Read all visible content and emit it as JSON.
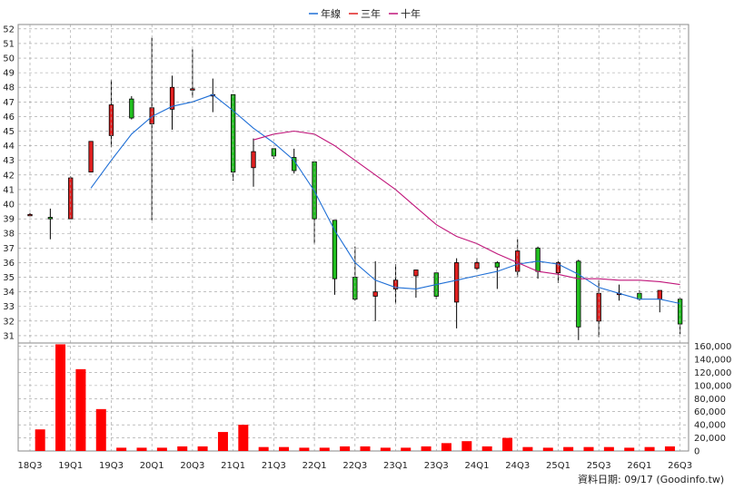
{
  "chart_data": {
    "type": "candlestick",
    "legend": [
      {
        "name": "年線",
        "color": "#1f6fd6"
      },
      {
        "name": "三年",
        "color": "#e02020"
      },
      {
        "name": "十年",
        "color": "#c0157a"
      }
    ],
    "x_tick_labels": [
      "18Q3",
      "19Q1",
      "19Q3",
      "20Q1",
      "20Q3",
      "21Q1",
      "21Q3",
      "22Q1",
      "22Q3",
      "23Q1",
      "23Q3",
      "24Q1",
      "24Q3",
      "25Q1",
      "25Q3",
      "26Q1",
      "26Q3"
    ],
    "price_axis": {
      "ylim": [
        30.5,
        52.3
      ],
      "ticks": [
        31,
        32,
        33,
        34,
        35,
        36,
        37,
        38,
        39,
        40,
        41,
        42,
        43,
        44,
        45,
        46,
        47,
        48,
        49,
        50,
        51,
        52
      ]
    },
    "volume_axis": {
      "ylim": [
        0,
        165000
      ],
      "ticks": [
        0,
        20000,
        40000,
        60000,
        80000,
        100000,
        120000,
        140000,
        160000
      ],
      "tick_labels": [
        "0",
        "20,000",
        "40,000",
        "60,000",
        "80,000",
        "100,000",
        "120,000",
        "140,000",
        "160,000"
      ]
    },
    "candles": [
      {
        "o": 39.3,
        "c": 39.3,
        "h": 39.4,
        "l": 39.2
      },
      {
        "o": 39.1,
        "c": 39.0,
        "h": 39.7,
        "l": 37.6
      },
      {
        "o": 39.0,
        "c": 41.8,
        "h": 41.9,
        "l": 39.0
      },
      {
        "o": 42.2,
        "c": 44.3,
        "h": 44.3,
        "l": 42.2
      },
      {
        "o": 44.7,
        "c": 46.8,
        "h": 48.5,
        "l": 43.9
      },
      {
        "o": 47.2,
        "c": 45.9,
        "h": 47.4,
        "l": 45.8
      },
      {
        "o": 45.5,
        "c": 46.6,
        "h": 51.4,
        "l": 38.9
      },
      {
        "o": 46.5,
        "c": 48.0,
        "h": 48.8,
        "l": 45.1
      },
      {
        "o": 47.9,
        "c": 47.9,
        "h": 50.6,
        "l": 47.3
      },
      {
        "o": 47.5,
        "c": 47.5,
        "h": 48.6,
        "l": 46.3
      },
      {
        "o": 47.5,
        "c": 42.2,
        "h": 47.5,
        "l": 41.6
      },
      {
        "o": 42.5,
        "c": 43.6,
        "h": 44.5,
        "l": 41.2
      },
      {
        "o": 43.8,
        "c": 43.3,
        "h": 43.8,
        "l": 43.1
      },
      {
        "o": 43.2,
        "c": 42.3,
        "h": 43.8,
        "l": 42.1
      },
      {
        "o": 42.9,
        "c": 39.0,
        "h": 42.9,
        "l": 37.3
      },
      {
        "o": 38.9,
        "c": 34.9,
        "h": 38.9,
        "l": 33.8
      },
      {
        "o": 35.0,
        "c": 33.5,
        "h": 37.1,
        "l": 33.4
      },
      {
        "o": 33.7,
        "c": 34.0,
        "h": 36.1,
        "l": 32.0
      },
      {
        "o": 34.2,
        "c": 34.8,
        "h": 35.9,
        "l": 33.2
      },
      {
        "o": 35.1,
        "c": 35.5,
        "h": 35.5,
        "l": 33.6
      },
      {
        "o": 35.3,
        "c": 33.7,
        "h": 35.3,
        "l": 33.5
      },
      {
        "o": 33.3,
        "c": 36.0,
        "h": 36.3,
        "l": 31.5
      },
      {
        "o": 35.6,
        "c": 36.0,
        "h": 36.3,
        "l": 35.5
      },
      {
        "o": 36.0,
        "c": 35.7,
        "h": 36.1,
        "l": 34.2
      },
      {
        "o": 35.4,
        "c": 36.8,
        "h": 37.6,
        "l": 35.0
      },
      {
        "o": 37.0,
        "c": 35.4,
        "h": 37.1,
        "l": 34.9
      },
      {
        "o": 35.3,
        "c": 36.0,
        "h": 36.1,
        "l": 34.6
      },
      {
        "o": 36.1,
        "c": 31.6,
        "h": 36.2,
        "l": 30.7
      },
      {
        "o": 32.0,
        "c": 33.9,
        "h": 34.8,
        "l": 30.9
      },
      {
        "o": 33.9,
        "c": 33.9,
        "h": 34.5,
        "l": 33.4
      },
      {
        "o": 33.9,
        "c": 33.5,
        "h": 34.1,
        "l": 33.4
      },
      {
        "o": 33.5,
        "c": 34.1,
        "h": 34.1,
        "l": 32.6
      },
      {
        "o": 33.5,
        "c": 31.8,
        "h": 33.6,
        "l": 31.1
      }
    ],
    "year_line": [
      {
        "i": 3,
        "v": 41.1
      },
      {
        "i": 4,
        "v": 43.0
      },
      {
        "i": 5,
        "v": 44.8
      },
      {
        "i": 6,
        "v": 46.0
      },
      {
        "i": 7,
        "v": 46.7
      },
      {
        "i": 8,
        "v": 47.0
      },
      {
        "i": 9,
        "v": 47.5
      },
      {
        "i": 10,
        "v": 46.4
      },
      {
        "i": 11,
        "v": 45.2
      },
      {
        "i": 12,
        "v": 44.2
      },
      {
        "i": 13,
        "v": 43.0
      },
      {
        "i": 14,
        "v": 40.9
      },
      {
        "i": 15,
        "v": 38.2
      },
      {
        "i": 16,
        "v": 36.0
      },
      {
        "i": 17,
        "v": 34.8
      },
      {
        "i": 18,
        "v": 34.3
      },
      {
        "i": 19,
        "v": 34.2
      },
      {
        "i": 20,
        "v": 34.5
      },
      {
        "i": 21,
        "v": 34.8
      },
      {
        "i": 22,
        "v": 35.1
      },
      {
        "i": 23,
        "v": 35.4
      },
      {
        "i": 24,
        "v": 35.9
      },
      {
        "i": 25,
        "v": 36.1
      },
      {
        "i": 26,
        "v": 35.9
      },
      {
        "i": 27,
        "v": 35.2
      },
      {
        "i": 28,
        "v": 34.3
      },
      {
        "i": 29,
        "v": 33.9
      },
      {
        "i": 30,
        "v": 33.5
      },
      {
        "i": 31,
        "v": 33.5
      },
      {
        "i": 32,
        "v": 33.2
      }
    ],
    "three_year_line": [
      {
        "i": 11,
        "v": 44.4
      },
      {
        "i": 12,
        "v": 44.8
      },
      {
        "i": 13,
        "v": 45.0
      },
      {
        "i": 14,
        "v": 44.8
      },
      {
        "i": 15,
        "v": 44.0
      },
      {
        "i": 16,
        "v": 43.0
      },
      {
        "i": 17,
        "v": 42.0
      },
      {
        "i": 18,
        "v": 41.0
      },
      {
        "i": 19,
        "v": 39.8
      },
      {
        "i": 20,
        "v": 38.6
      },
      {
        "i": 21,
        "v": 37.8
      },
      {
        "i": 22,
        "v": 37.3
      },
      {
        "i": 23,
        "v": 36.6
      },
      {
        "i": 24,
        "v": 36.0
      },
      {
        "i": 25,
        "v": 35.4
      },
      {
        "i": 26,
        "v": 35.2
      },
      {
        "i": 27,
        "v": 34.9
      },
      {
        "i": 28,
        "v": 34.9
      },
      {
        "i": 29,
        "v": 34.8
      },
      {
        "i": 30,
        "v": 34.8
      },
      {
        "i": 31,
        "v": 34.7
      },
      {
        "i": 32,
        "v": 34.5
      }
    ],
    "volumes": [
      1000,
      33000,
      1000,
      163000,
      1000,
      125000,
      1000,
      64000,
      1000,
      5000,
      1000,
      5000,
      1000,
      5000,
      1000,
      7000,
      1000,
      7000,
      1000,
      29000,
      1000,
      40000,
      1000,
      6000,
      1000,
      6000,
      1000,
      5000,
      1000,
      5000,
      1000,
      7000,
      1000,
      7000,
      1000,
      5000,
      1000,
      5000,
      1000,
      7000,
      1000,
      12000,
      1000,
      15000,
      1000,
      7000,
      1000,
      20000,
      1000,
      6000,
      1000,
      5000,
      1000,
      6000,
      1000,
      6000,
      1000,
      6000,
      1000,
      5000,
      1000,
      6000,
      1000,
      7000
    ],
    "up_color": "#e02020",
    "down_color": "#22c020",
    "volume_color": "#ff0000",
    "grid": true
  },
  "footer_note": "資料日期: 09/17  (Goodinfo.tw)"
}
